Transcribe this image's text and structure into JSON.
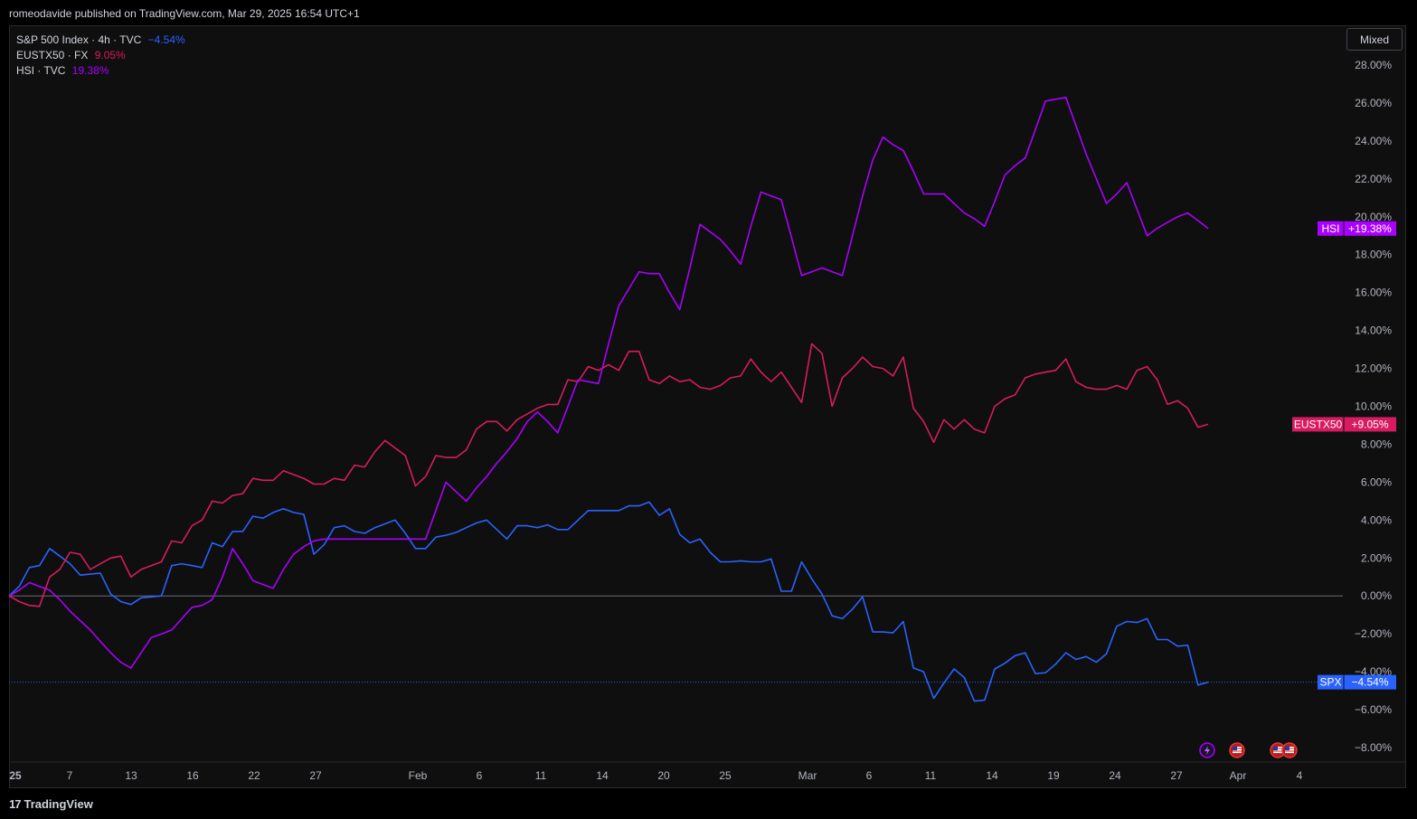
{
  "header": {
    "text": "romeodavide published on TradingView.com, Mar 29, 2025 16:54 UTC+1"
  },
  "legend": [
    {
      "name": "S&P 500 Index · 4h · TVC",
      "value": "−4.54%",
      "color": "#2962ff"
    },
    {
      "name": "EUSTX50 · FX",
      "value": "9.05%",
      "color": "#d81b60"
    },
    {
      "name": "HSI · TVC",
      "value": "19.38%",
      "color": "#aa00ff"
    }
  ],
  "scale_mode": "Mixed",
  "footer": {
    "brand": "TradingView",
    "logo_mark": "17"
  },
  "chart_data": {
    "type": "line",
    "y_unit": "%",
    "ylim": [
      -8,
      28
    ],
    "y_ticks": [
      "28.00%",
      "26.00%",
      "24.00%",
      "22.00%",
      "20.00%",
      "18.00%",
      "16.00%",
      "14.00%",
      "12.00%",
      "10.00%",
      "8.00%",
      "6.00%",
      "4.00%",
      "2.00%",
      "0.00%",
      "−2.00%",
      "−4.00%",
      "−6.00%",
      "−8.00%"
    ],
    "x_ticks": [
      "25",
      "7",
      "13",
      "16",
      "22",
      "27",
      "Feb",
      "6",
      "11",
      "14",
      "20",
      "25",
      "Mar",
      "6",
      "11",
      "14",
      "19",
      "24",
      "27",
      "Apr",
      "4"
    ],
    "grid": false,
    "zero_line": true,
    "series": [
      {
        "name": "S&P 500 Index",
        "label": "SPX",
        "last_label": "−4.54%",
        "color": "#2962ff",
        "values": [
          0,
          0.5,
          1.5,
          1.6,
          2.5,
          2.1,
          1.7,
          1.1,
          1.15,
          1.2,
          0.1,
          -0.3,
          -0.45,
          -0.1,
          -0.05,
          0,
          1.6,
          1.7,
          1.6,
          1.5,
          2.8,
          2.6,
          3.4,
          3.4,
          4.2,
          4.1,
          4.4,
          4.6,
          4.4,
          4.3,
          2.2,
          2.7,
          3.6,
          3.7,
          3.4,
          3.3,
          3.6,
          3.8,
          4.0,
          3.3,
          2.5,
          2.5,
          3.1,
          3.2,
          3.35,
          3.6,
          3.85,
          4.0,
          3.5,
          3.0,
          3.7,
          3.7,
          3.6,
          3.75,
          3.5,
          3.5,
          4.0,
          4.5,
          4.5,
          4.5,
          4.5,
          4.75,
          4.75,
          4.95,
          4.25,
          4.6,
          3.25,
          2.8,
          3.0,
          2.3,
          1.8,
          1.8,
          1.85,
          1.8,
          1.8,
          1.95,
          0.25,
          0.25,
          1.8,
          0.9,
          0.1,
          -1.05,
          -1.2,
          -0.7,
          -0.05,
          -1.9,
          -1.9,
          -1.95,
          -1.35,
          -3.8,
          -4.0,
          -5.4,
          -4.6,
          -3.85,
          -4.3,
          -5.55,
          -5.5,
          -3.85,
          -3.55,
          -3.15,
          -3.0,
          -4.1,
          -4.05,
          -3.6,
          -3.0,
          -3.35,
          -3.2,
          -3.5,
          -3.05,
          -1.6,
          -1.35,
          -1.4,
          -1.2,
          -2.3,
          -2.3,
          -2.65,
          -2.6,
          -4.7,
          -4.55
        ]
      },
      {
        "name": "EUSTX50",
        "label": "EUSTX50",
        "last_label": "+9.05%",
        "color": "#d81b60",
        "values": [
          0,
          -0.3,
          -0.5,
          -0.55,
          1.0,
          1.4,
          2.3,
          2.2,
          1.4,
          1.7,
          2.0,
          2.1,
          1.0,
          1.4,
          1.6,
          1.8,
          2.9,
          2.8,
          3.7,
          4.0,
          5.0,
          4.9,
          5.3,
          5.4,
          6.2,
          6.1,
          6.1,
          6.6,
          6.4,
          6.2,
          5.9,
          5.9,
          6.2,
          6.1,
          6.9,
          6.8,
          7.6,
          8.2,
          7.8,
          7.4,
          5.8,
          6.3,
          7.4,
          7.3,
          7.3,
          7.7,
          8.8,
          9.2,
          9.2,
          8.7,
          9.3,
          9.6,
          9.9,
          10.1,
          10.1,
          11.4,
          11.3,
          12.1,
          11.9,
          12.2,
          11.9,
          12.9,
          12.9,
          11.4,
          11.2,
          11.6,
          11.3,
          11.4,
          11.0,
          10.9,
          11.1,
          11.5,
          11.6,
          12.5,
          11.8,
          11.3,
          11.8,
          11.0,
          10.2,
          13.3,
          12.8,
          10.0,
          11.5,
          12.0,
          12.6,
          12.1,
          12.0,
          11.6,
          12.6,
          9.9,
          9.2,
          8.1,
          9.3,
          8.8,
          9.3,
          8.8,
          8.6,
          10.0,
          10.4,
          10.6,
          11.5,
          11.7,
          11.8,
          11.9,
          12.5,
          11.3,
          11.0,
          10.9,
          10.9,
          11.1,
          10.9,
          11.9,
          12.1,
          11.4,
          10.1,
          10.3,
          9.9,
          8.9,
          9.05
        ]
      },
      {
        "name": "HSI",
        "label": "HSI",
        "last_label": "+19.38%",
        "color": "#aa00ff",
        "values": [
          0,
          0.3,
          0.7,
          0.5,
          0.3,
          -0.2,
          -0.8,
          -1.3,
          -1.8,
          -2.4,
          -3.0,
          -3.5,
          -3.8,
          -3.0,
          -2.2,
          -2.0,
          -1.8,
          -1.2,
          -0.6,
          -0.5,
          -0.2,
          1.0,
          2.5,
          1.7,
          0.8,
          0.6,
          0.4,
          1.4,
          2.2,
          2.6,
          2.9,
          3.0,
          3.0,
          3.0,
          3.0,
          3.0,
          3.0,
          3.0,
          3.0,
          3.0,
          3.0,
          3.0,
          4.5,
          6.0,
          5.5,
          5.0,
          5.7,
          6.3,
          7.0,
          7.6,
          8.3,
          9.2,
          9.7,
          9.2,
          8.6,
          10.0,
          11.4,
          11.3,
          11.2,
          13.3,
          15.3,
          16.2,
          17.1,
          17.0,
          17.0,
          16.0,
          15.1,
          17.3,
          19.6,
          19.2,
          18.8,
          18.2,
          17.5,
          19.5,
          21.3,
          21.1,
          20.9,
          18.9,
          16.9,
          17.1,
          17.3,
          17.1,
          16.9,
          19.0,
          21.1,
          23.0,
          24.2,
          23.8,
          23.5,
          22.4,
          21.2,
          21.2,
          21.2,
          20.7,
          20.2,
          19.9,
          19.5,
          20.8,
          22.2,
          22.7,
          23.1,
          24.6,
          26.1,
          26.2,
          26.3,
          24.8,
          23.3,
          22.0,
          20.7,
          21.2,
          21.8,
          20.4,
          19.0,
          19.4,
          19.7,
          20.0,
          20.2,
          19.8,
          19.38
        ]
      }
    ]
  }
}
